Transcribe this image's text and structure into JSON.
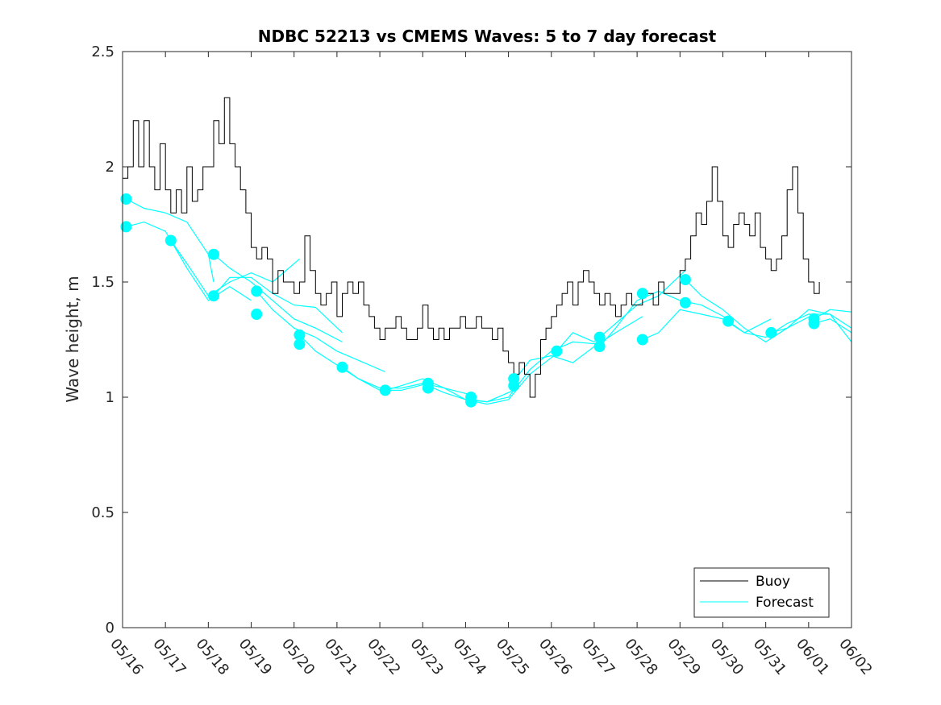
{
  "chart_data": {
    "type": "line",
    "title": "NDBC 52213 vs CMEMS Waves: 5 to 7 day forecast",
    "xlabel": "",
    "ylabel": "Wave height, m",
    "xlim": [
      "05/16",
      "06/02"
    ],
    "ylim": [
      0,
      2.5
    ],
    "x_ticks": [
      "05/16",
      "05/17",
      "05/18",
      "05/19",
      "05/20",
      "05/21",
      "05/22",
      "05/23",
      "05/24",
      "05/25",
      "05/26",
      "05/27",
      "05/28",
      "05/29",
      "05/30",
      "05/31",
      "06/01",
      "06/02"
    ],
    "y_ticks": [
      "0",
      "0.5",
      "1",
      "1.5",
      "2",
      "2.5"
    ],
    "grid": false,
    "legend": {
      "placement": "bottom-right",
      "entries": [
        "Buoy",
        "Forecast"
      ]
    },
    "colors": {
      "buoy": "#000000",
      "forecast": "#00ffff"
    },
    "buoy": {
      "name": "Buoy",
      "x": [
        "05/16 00:00",
        "05/16 03:00",
        "05/16 06:00",
        "05/16 09:00",
        "05/16 12:00",
        "05/16 15:00",
        "05/16 18:00",
        "05/16 21:00",
        "05/17 00:00",
        "05/17 03:00",
        "05/17 06:00",
        "05/17 09:00",
        "05/17 12:00",
        "05/17 15:00",
        "05/17 18:00",
        "05/17 21:00",
        "05/18 00:00",
        "05/18 03:00",
        "05/18 06:00",
        "05/18 09:00",
        "05/18 12:00",
        "05/18 15:00",
        "05/18 18:00",
        "05/18 21:00",
        "05/19 00:00",
        "05/19 03:00",
        "05/19 06:00",
        "05/19 09:00",
        "05/19 12:00",
        "05/19 15:00",
        "05/19 18:00",
        "05/19 21:00",
        "05/20 00:00",
        "05/20 03:00",
        "05/20 06:00",
        "05/20 09:00",
        "05/20 12:00",
        "05/20 15:00",
        "05/20 18:00",
        "05/20 21:00",
        "05/21 00:00",
        "05/21 03:00",
        "05/21 06:00",
        "05/21 09:00",
        "05/21 12:00",
        "05/21 15:00",
        "05/21 18:00",
        "05/21 21:00",
        "05/22 00:00",
        "05/22 03:00",
        "05/22 06:00",
        "05/22 09:00",
        "05/22 12:00",
        "05/22 15:00",
        "05/22 18:00",
        "05/22 21:00",
        "05/23 00:00",
        "05/23 03:00",
        "05/23 06:00",
        "05/23 09:00",
        "05/23 12:00",
        "05/23 15:00",
        "05/23 18:00",
        "05/23 21:00",
        "05/24 00:00",
        "05/24 03:00",
        "05/24 06:00",
        "05/24 09:00",
        "05/24 12:00",
        "05/24 15:00",
        "05/24 18:00",
        "05/24 21:00",
        "05/25 00:00",
        "05/25 03:00",
        "05/25 06:00",
        "05/25 09:00",
        "05/25 12:00",
        "05/25 15:00",
        "05/25 18:00",
        "05/25 21:00",
        "05/26 00:00",
        "05/26 03:00",
        "05/26 06:00",
        "05/26 09:00",
        "05/26 12:00",
        "05/26 15:00",
        "05/26 18:00",
        "05/26 21:00",
        "05/27 00:00",
        "05/27 03:00",
        "05/27 06:00",
        "05/27 09:00",
        "05/27 12:00",
        "05/27 15:00",
        "05/27 18:00",
        "05/27 21:00",
        "05/28 00:00",
        "05/28 03:00",
        "05/28 06:00",
        "05/28 09:00",
        "05/28 12:00",
        "05/28 15:00",
        "05/28 18:00",
        "05/28 21:00",
        "05/29 00:00",
        "05/29 03:00",
        "05/29 06:00",
        "05/29 09:00",
        "05/29 12:00",
        "05/29 15:00",
        "05/29 18:00",
        "05/29 21:00",
        "05/30 00:00",
        "05/30 03:00",
        "05/30 06:00",
        "05/30 09:00",
        "05/30 12:00",
        "05/30 15:00",
        "05/30 18:00",
        "05/30 21:00",
        "05/31 00:00",
        "05/31 03:00",
        "05/31 06:00",
        "05/31 09:00",
        "05/31 12:00",
        "05/31 15:00",
        "05/31 18:00",
        "05/31 21:00",
        "06/01 00:00",
        "06/01 03:00",
        "06/01 06:00"
      ],
      "values": [
        1.95,
        2.0,
        2.2,
        2.0,
        2.2,
        2.0,
        1.9,
        2.1,
        1.9,
        1.8,
        1.9,
        1.8,
        2.0,
        1.85,
        1.9,
        2.0,
        2.0,
        2.2,
        2.1,
        2.3,
        2.1,
        2.0,
        1.9,
        1.8,
        1.65,
        1.6,
        1.65,
        1.6,
        1.45,
        1.55,
        1.5,
        1.5,
        1.45,
        1.5,
        1.7,
        1.55,
        1.45,
        1.4,
        1.45,
        1.5,
        1.35,
        1.45,
        1.5,
        1.45,
        1.5,
        1.4,
        1.35,
        1.3,
        1.25,
        1.3,
        1.3,
        1.35,
        1.3,
        1.25,
        1.25,
        1.3,
        1.4,
        1.3,
        1.25,
        1.3,
        1.25,
        1.3,
        1.3,
        1.35,
        1.3,
        1.3,
        1.35,
        1.3,
        1.3,
        1.25,
        1.3,
        1.2,
        1.15,
        1.1,
        1.15,
        1.1,
        1.0,
        1.1,
        1.25,
        1.3,
        1.35,
        1.4,
        1.45,
        1.5,
        1.4,
        1.5,
        1.55,
        1.5,
        1.45,
        1.4,
        1.45,
        1.4,
        1.35,
        1.4,
        1.45,
        1.4,
        1.4,
        1.45,
        1.45,
        1.4,
        1.5,
        1.45,
        1.45,
        1.45,
        1.55,
        1.6,
        1.7,
        1.8,
        1.75,
        1.85,
        2.0,
        1.85,
        1.7,
        1.65,
        1.75,
        1.8,
        1.75,
        1.7,
        1.8,
        1.65,
        1.6,
        1.55,
        1.6,
        1.7,
        1.9,
        2.0,
        1.8,
        1.6,
        1.5,
        1.45,
        1.5
      ]
    },
    "forecast_runs": [
      {
        "x": [
          "05/16 02:00",
          "05/16 12:00",
          "05/17 00:00",
          "05/17 12:00",
          "05/18 00:00",
          "05/18 03:00"
        ],
        "values": [
          1.86,
          1.82,
          1.8,
          1.76,
          1.62,
          1.5
        ]
      },
      {
        "x": [
          "05/16 02:00",
          "05/16 12:00",
          "05/17 00:00",
          "05/17 12:00",
          "05/18 00:00",
          "05/18 12:00",
          "05/19 00:00"
        ],
        "values": [
          1.74,
          1.76,
          1.72,
          1.56,
          1.42,
          1.48,
          1.42
        ]
      },
      {
        "x": [
          "05/17 03:00",
          "05/17 12:00",
          "05/18 00:00",
          "05/18 12:00",
          "05/19 00:00",
          "05/19 12:00",
          "05/20 03:00"
        ],
        "values": [
          1.68,
          1.58,
          1.44,
          1.5,
          1.54,
          1.5,
          1.6
        ]
      },
      {
        "x": [
          "05/18 03:00",
          "05/18 12:00",
          "05/19 00:00",
          "05/19 12:00",
          "05/20 00:00",
          "05/20 12:00",
          "05/21 03:00"
        ],
        "values": [
          1.44,
          1.52,
          1.52,
          1.45,
          1.4,
          1.39,
          1.28
        ]
      },
      {
        "x": [
          "05/18 03:00",
          "05/18 12:00",
          "05/19 00:00",
          "05/19 12:00",
          "05/20 00:00",
          "05/20 12:00",
          "05/21 03:00"
        ],
        "values": [
          1.62,
          1.56,
          1.5,
          1.42,
          1.34,
          1.3,
          1.24
        ]
      },
      {
        "x": [
          "05/19 03:00",
          "05/19 12:00",
          "05/20 00:00",
          "05/20 12:00",
          "05/21 00:00",
          "05/21 12:00",
          "05/22 03:00"
        ],
        "values": [
          1.46,
          1.38,
          1.3,
          1.26,
          1.2,
          1.16,
          1.11
        ]
      },
      {
        "x": [
          "05/20 03:00",
          "05/20 12:00",
          "05/21 00:00",
          "05/21 12:00",
          "05/22 00:00",
          "05/22 12:00",
          "05/23 03:00"
        ],
        "values": [
          1.27,
          1.2,
          1.14,
          1.08,
          1.03,
          1.03,
          1.06
        ]
      },
      {
        "x": [
          "05/21 03:00",
          "05/21 12:00",
          "05/22 00:00",
          "05/22 12:00",
          "05/23 00:00",
          "05/23 12:00",
          "05/24 03:00"
        ],
        "values": [
          1.13,
          1.08,
          1.04,
          1.04,
          1.06,
          1.04,
          1.01
        ]
      },
      {
        "x": [
          "05/22 03:00",
          "05/22 12:00",
          "05/23 00:00",
          "05/23 12:00",
          "05/24 00:00",
          "05/24 12:00",
          "05/25 03:00"
        ],
        "values": [
          1.03,
          1.05,
          1.08,
          1.04,
          0.99,
          0.98,
          1.03
        ]
      },
      {
        "x": [
          "05/23 03:00",
          "05/23 12:00",
          "05/24 00:00",
          "05/24 12:00",
          "05/25 00:00",
          "05/25 12:00",
          "05/26 03:00"
        ],
        "values": [
          1.05,
          1.02,
          0.99,
          0.97,
          0.99,
          1.1,
          1.19
        ]
      },
      {
        "x": [
          "05/24 03:00",
          "05/24 12:00",
          "05/25 00:00",
          "05/25 12:00",
          "05/26 00:00",
          "05/26 12:00",
          "05/27 03:00"
        ],
        "values": [
          0.99,
          0.98,
          1.0,
          1.12,
          1.2,
          1.24,
          1.23
        ]
      },
      {
        "x": [
          "05/25 03:00",
          "05/25 12:00",
          "05/26 00:00",
          "05/26 12:00",
          "05/27 00:00",
          "05/27 12:00",
          "05/28 03:00"
        ],
        "values": [
          1.07,
          1.16,
          1.18,
          1.15,
          1.22,
          1.28,
          1.35
        ]
      },
      {
        "x": [
          "05/26 03:00",
          "05/26 12:00",
          "05/27 00:00",
          "05/27 12:00",
          "05/28 00:00",
          "05/28 12:00",
          "05/29 03:00"
        ],
        "values": [
          1.2,
          1.28,
          1.24,
          1.32,
          1.4,
          1.44,
          1.55
        ]
      },
      {
        "x": [
          "05/27 03:00",
          "05/27 12:00",
          "05/28 00:00",
          "05/28 12:00",
          "05/29 00:00",
          "05/29 12:00",
          "05/30 03:00"
        ],
        "values": [
          1.22,
          1.3,
          1.42,
          1.46,
          1.42,
          1.4,
          1.34
        ]
      },
      {
        "x": [
          "05/28 03:00",
          "05/28 12:00",
          "05/29 00:00",
          "05/29 12:00",
          "05/30 00:00",
          "05/30 12:00",
          "05/31 03:00"
        ],
        "values": [
          1.25,
          1.28,
          1.38,
          1.36,
          1.34,
          1.28,
          1.34
        ]
      },
      {
        "x": [
          "05/29 03:00",
          "05/29 12:00",
          "05/30 00:00",
          "05/30 12:00",
          "05/31 00:00",
          "05/31 12:00",
          "06/01 03:00"
        ],
        "values": [
          1.51,
          1.44,
          1.38,
          1.3,
          1.24,
          1.3,
          1.36
        ]
      },
      {
        "x": [
          "05/30 03:00",
          "05/30 12:00",
          "05/31 00:00",
          "05/31 12:00",
          "06/01 00:00",
          "06/01 12:00",
          "06/02 00:00"
        ],
        "values": [
          1.33,
          1.28,
          1.26,
          1.32,
          1.36,
          1.36,
          1.3
        ]
      },
      {
        "x": [
          "05/31 03:00",
          "05/31 12:00",
          "06/01 00:00",
          "06/01 12:00",
          "06/02 00:00"
        ],
        "values": [
          1.28,
          1.3,
          1.38,
          1.36,
          1.24
        ]
      },
      {
        "x": [
          "06/01 03:00",
          "06/01 12:00",
          "06/02 00:00"
        ],
        "values": [
          1.34,
          1.38,
          1.37
        ]
      },
      {
        "x": [
          "06/01 03:00",
          "06/01 12:00",
          "06/02 00:00"
        ],
        "values": [
          1.32,
          1.34,
          1.28
        ]
      }
    ],
    "forecast_markers": [
      {
        "x": "05/16 02:00",
        "y": 1.86
      },
      {
        "x": "05/16 02:00",
        "y": 1.74
      },
      {
        "x": "05/17 03:00",
        "y": 1.68
      },
      {
        "x": "05/18 03:00",
        "y": 1.62
      },
      {
        "x": "05/18 03:00",
        "y": 1.44
      },
      {
        "x": "05/19 03:00",
        "y": 1.46
      },
      {
        "x": "05/19 03:00",
        "y": 1.36
      },
      {
        "x": "05/20 03:00",
        "y": 1.27
      },
      {
        "x": "05/20 03:00",
        "y": 1.23
      },
      {
        "x": "05/21 03:00",
        "y": 1.13
      },
      {
        "x": "05/22 03:00",
        "y": 1.03
      },
      {
        "x": "05/23 03:00",
        "y": 1.06
      },
      {
        "x": "05/23 03:00",
        "y": 1.04
      },
      {
        "x": "05/24 03:00",
        "y": 1.0
      },
      {
        "x": "05/24 03:00",
        "y": 0.98
      },
      {
        "x": "05/25 03:00",
        "y": 1.08
      },
      {
        "x": "05/25 03:00",
        "y": 1.05
      },
      {
        "x": "05/26 03:00",
        "y": 1.2
      },
      {
        "x": "05/27 03:00",
        "y": 1.26
      },
      {
        "x": "05/27 03:00",
        "y": 1.22
      },
      {
        "x": "05/28 03:00",
        "y": 1.25
      },
      {
        "x": "05/28 03:00",
        "y": 1.45
      },
      {
        "x": "05/29 03:00",
        "y": 1.51
      },
      {
        "x": "05/29 03:00",
        "y": 1.41
      },
      {
        "x": "05/30 03:00",
        "y": 1.33
      },
      {
        "x": "05/31 03:00",
        "y": 1.28
      },
      {
        "x": "06/01 03:00",
        "y": 1.34
      },
      {
        "x": "06/01 03:00",
        "y": 1.32
      }
    ]
  }
}
